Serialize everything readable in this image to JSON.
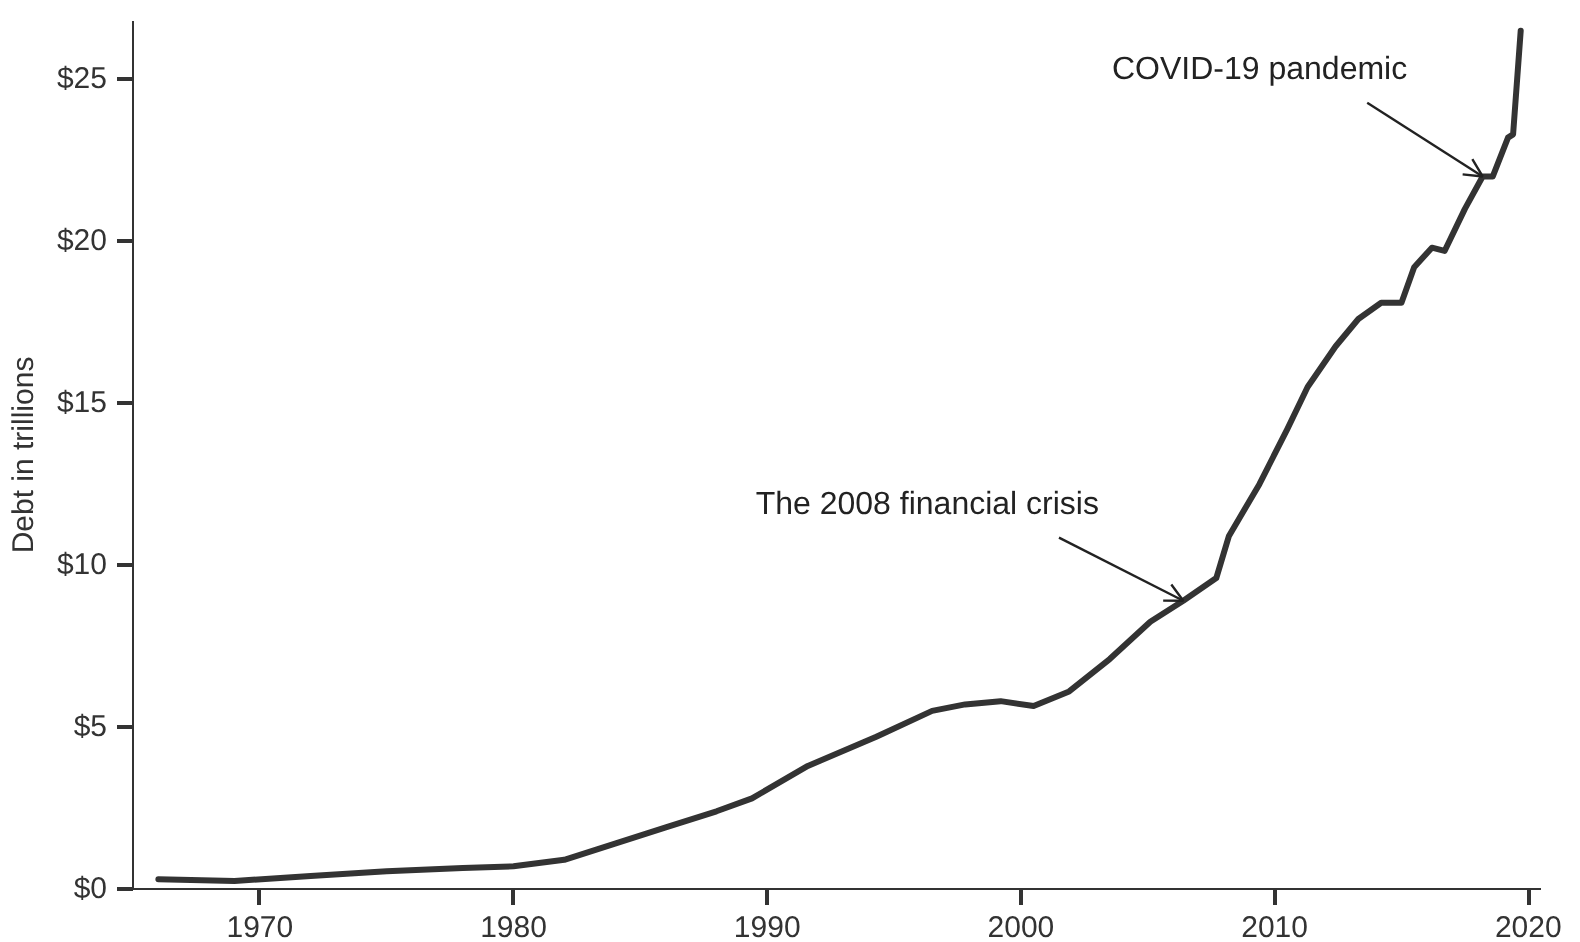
{
  "chart_data": {
    "type": "line",
    "ylabel": "Debt in trillions",
    "x": [
      1966,
      1969,
      1972,
      1975,
      1978,
      1980,
      1982,
      1984,
      1986,
      1988,
      1989.4,
      1991.6,
      1994.3,
      1996.5,
      1997.8,
      1999.2,
      2000.5,
      2001.9,
      2003.5,
      2005.1,
      2006.4,
      2007.7,
      2008.2,
      2009.4,
      2010.5,
      2011.3,
      2012.4,
      2013.3,
      2014.2,
      2015.0,
      2015.5,
      2016.2,
      2016.7,
      2017.5,
      2018.2,
      2018.6,
      2019.2,
      2019.4,
      2019.7
    ],
    "series": [
      {
        "color": "#333333",
        "values": [
          0.3,
          0.25,
          0.4,
          0.55,
          0.65,
          0.7,
          0.9,
          1.4,
          1.9,
          2.4,
          2.8,
          3.8,
          4.7,
          5.5,
          5.7,
          5.8,
          5.65,
          6.1,
          7.1,
          8.25,
          8.9,
          9.6,
          10.9,
          12.5,
          14.2,
          15.5,
          16.75,
          17.6,
          18.1,
          18.1,
          19.2,
          19.8,
          19.7,
          21.0,
          22.0,
          22.0,
          23.2,
          23.3,
          26.5
        ]
      }
    ],
    "xlim": [
      1965,
      2020.5
    ],
    "ylim": [
      0,
      26.8
    ],
    "xticks": [
      1970,
      1980,
      1990,
      2000,
      2010,
      2020
    ],
    "yticks": [
      {
        "value": 0,
        "label": "$0"
      },
      {
        "value": 5,
        "label": "$5"
      },
      {
        "value": 10,
        "label": "$10"
      },
      {
        "value": 15,
        "label": "$15"
      },
      {
        "value": 20,
        "label": "$20"
      },
      {
        "value": 25,
        "label": "$25"
      }
    ],
    "annotations": [
      {
        "text": "The 2008 financial crisis",
        "x": 2006.4,
        "y": 8.9
      },
      {
        "text": "COVID-19 pandemic",
        "x": 2018.2,
        "y": 22.0
      }
    ],
    "grid": false,
    "marker": "none",
    "line_style": "solid"
  }
}
